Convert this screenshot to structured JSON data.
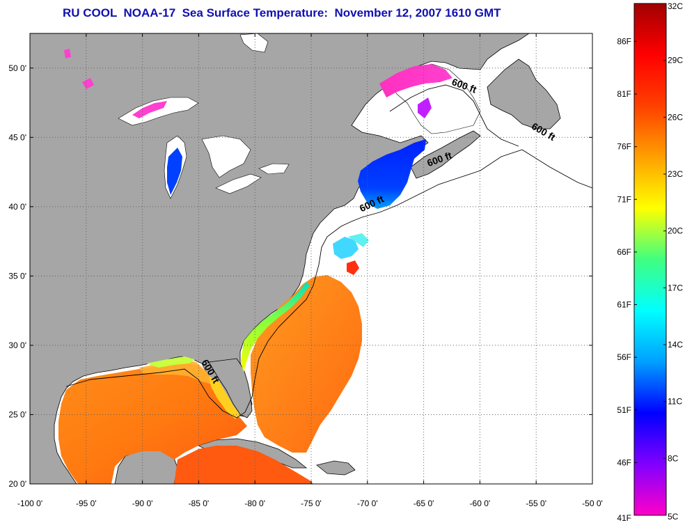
{
  "title": "RU COOL  NOAA-17  Sea Surface Temperature:  November 12, 2007 1610 GMT",
  "map": {
    "lon_range": [
      -100,
      -50
    ],
    "lat_range": [
      20,
      52.5
    ],
    "lon_ticks": [
      "-100 0'",
      "-95 0'",
      "-90 0'",
      "-85 0'",
      "-80 0'",
      "-75 0'",
      "-70 0'",
      "-65 0'",
      "-60 0'",
      "-55 0'",
      "-50 0'"
    ],
    "lat_ticks": [
      "20 0'",
      "25 0'",
      "30 0'",
      "35 0'",
      "40 0'",
      "45 0'",
      "50 0'"
    ],
    "contour_labels": [
      {
        "text": "600 ft",
        "lon": -61.5,
        "lat": 48.5,
        "angle": 20
      },
      {
        "text": "600 ft",
        "lon": -54.5,
        "lat": 45.2,
        "angle": 30
      },
      {
        "text": "600 ft",
        "lon": -63.5,
        "lat": 43.2,
        "angle": -20
      },
      {
        "text": "600 ft",
        "lon": -69.5,
        "lat": 40.0,
        "angle": -25
      },
      {
        "text": "600 ft",
        "lon": -84.2,
        "lat": 28.0,
        "angle": 60
      }
    ],
    "colors": {
      "land": "#a6a6a6",
      "ocean_missing": "#ffffff",
      "grid": "#606060"
    }
  },
  "colorbar": {
    "celsius": [
      "32C",
      "29C",
      "26C",
      "23C",
      "20C",
      "17C",
      "14C",
      "11C",
      "8C",
      "5C"
    ],
    "fahrenheit": [
      "86F",
      "81F",
      "76F",
      "71F",
      "66F",
      "61F",
      "56F",
      "51F",
      "46F",
      "41F"
    ],
    "range_c": [
      5,
      32
    ],
    "stops": [
      "#ff00c8",
      "#8000ff",
      "#0000ff",
      "#00a0ff",
      "#00ffff",
      "#40ff80",
      "#ffff00",
      "#ffa000",
      "#ff4000",
      "#ff0000",
      "#a00000"
    ]
  }
}
